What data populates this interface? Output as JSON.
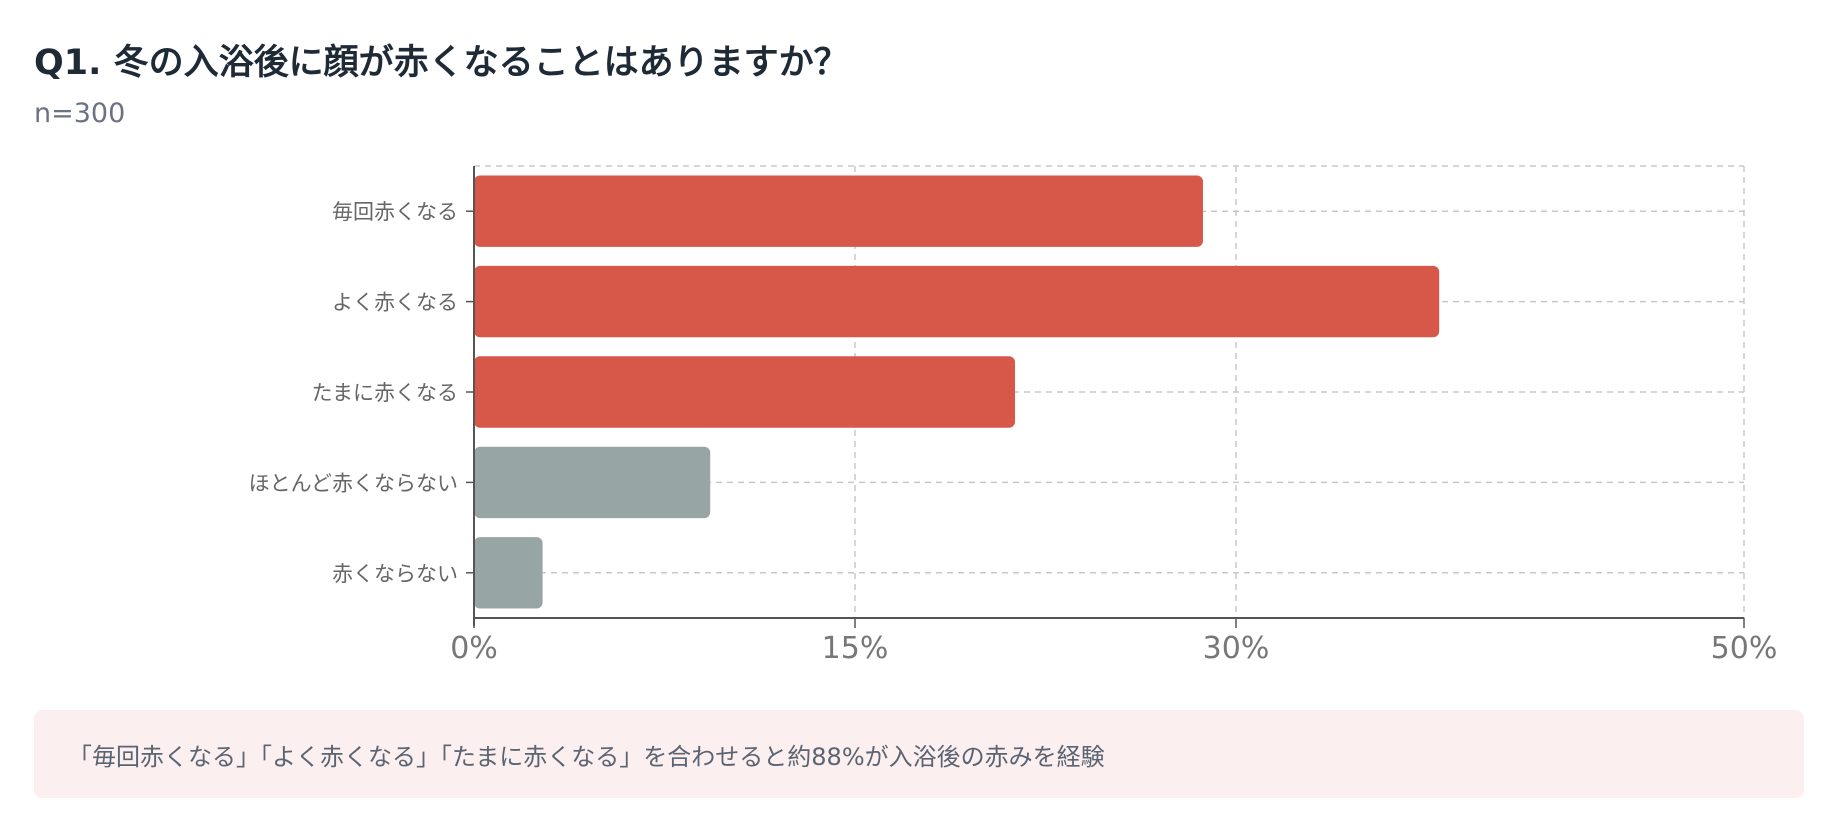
{
  "header": {
    "title": "Q1. 冬の入浴後に顔が赤くなることはありますか？",
    "sample": "n=300"
  },
  "chart_data": {
    "type": "bar",
    "orientation": "horizontal",
    "categories": [
      "毎回赤くなる",
      "よく赤くなる",
      "たまに赤くなる",
      "ほとんど赤くならない",
      "赤くならない"
    ],
    "values": [
      28.7,
      38.0,
      21.3,
      9.3,
      2.7
    ],
    "value_unit": "%",
    "bar_colors": [
      "#d75749",
      "#d75749",
      "#d75749",
      "#98a5a5",
      "#98a5a5"
    ],
    "xticks": [
      0,
      15,
      30,
      50
    ],
    "xtick_labels": [
      "0%",
      "15%",
      "30%",
      "50%"
    ],
    "xlim": [
      0,
      50
    ],
    "grid": true
  },
  "note": {
    "text": "「毎回赤くなる」「よく赤くなる」「たまに赤くなる」を合わせると約88%が入浴後の赤みを経験"
  }
}
